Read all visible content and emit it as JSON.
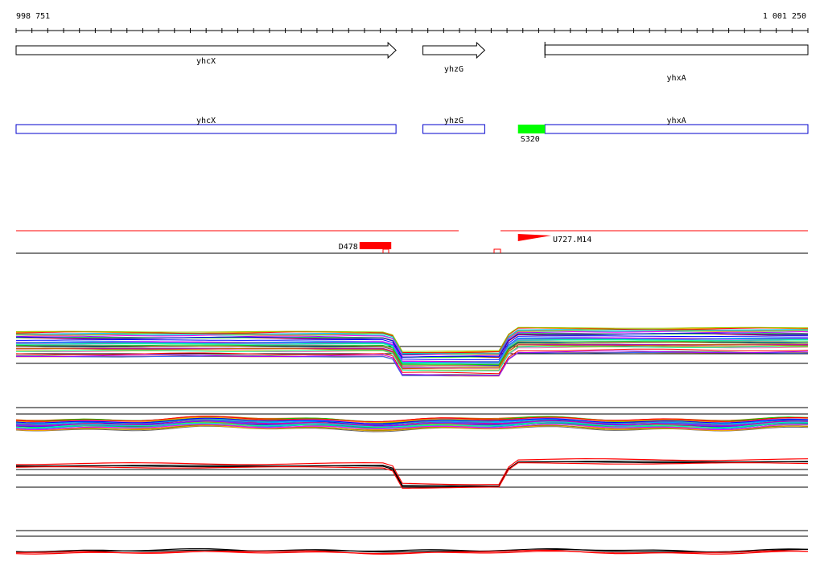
{
  "ruler": {
    "start_label": "998 751",
    "end_label": "1 001 250",
    "start_coord": 998751,
    "end_coord": 1001250
  },
  "genes": [
    {
      "name": "yhcX",
      "start": 998751,
      "end": 999950,
      "strand": "+"
    },
    {
      "name": "yhzG",
      "start": 1000035,
      "end": 1000230,
      "strand": "+"
    },
    {
      "name": "yhxA",
      "start": 1000420,
      "end": 1001250,
      "strand": "+"
    }
  ],
  "annotations": {
    "highlight": {
      "label": "S320",
      "color": "#00ff00",
      "start": 1000335,
      "end": 1000420
    },
    "features": [
      {
        "label": "D478",
        "color": "#ff0000",
        "shape": "bar",
        "start": 999835,
        "end": 999935
      },
      {
        "label": "U727.M14",
        "color": "#ff0000",
        "shape": "ramp",
        "start": 1000335,
        "end": 1000440
      }
    ]
  },
  "colors": {
    "gene_block_border": "#0000cc",
    "feature_red": "#ff0000",
    "highlight_green": "#00ff00"
  }
}
